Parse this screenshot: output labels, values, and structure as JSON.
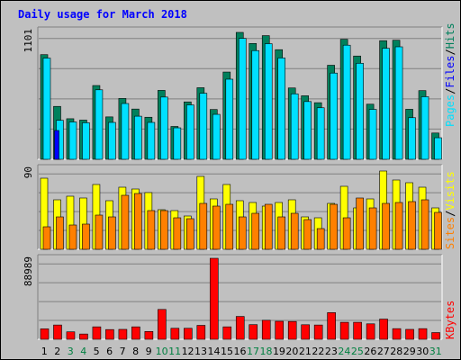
{
  "chart_data": [
    {
      "type": "bar",
      "panel": "pages-files-hits",
      "title": "Daily usage for March 2018",
      "categories": [
        "1",
        "2",
        "3",
        "4",
        "5",
        "6",
        "7",
        "8",
        "9",
        "10",
        "11",
        "12",
        "13",
        "14",
        "15",
        "16",
        "17",
        "18",
        "19",
        "20",
        "21",
        "22",
        "23",
        "24",
        "25",
        "26",
        "27",
        "28",
        "29",
        "30",
        "31"
      ],
      "weekend_days": [
        3,
        4,
        10,
        11,
        17,
        18,
        24,
        25,
        31
      ],
      "ymax_label": "1101",
      "ylim": [
        0,
        1101
      ],
      "legend": [
        "Pages",
        "/",
        "Files",
        "/",
        "Hits"
      ],
      "series": [
        {
          "name": "Hits",
          "color": "#00805c",
          "values": [
            908,
            459,
            352,
            340,
            640,
            368,
            528,
            436,
            365,
            598,
            285,
            498,
            621,
            432,
            757,
            1101,
            1005,
            1073,
            951,
            619,
            551,
            491,
            816,
            1041,
            896,
            478,
            1029,
            1033,
            434,
            596,
            228
          ]
        },
        {
          "name": "Files",
          "color": "#00e0ff",
          "values": [
            878,
            338,
            324,
            317,
            603,
            320,
            484,
            374,
            320,
            540,
            273,
            472,
            573,
            390,
            695,
            1049,
            943,
            1003,
            879,
            568,
            501,
            447,
            748,
            990,
            833,
            433,
            963,
            976,
            361,
            543,
            187
          ]
        },
        {
          "name": "Pages",
          "color": "#0000ff",
          "values": [
            0,
            250,
            0,
            0,
            0,
            0,
            0,
            0,
            0,
            0,
            0,
            0,
            0,
            0,
            0,
            0,
            0,
            0,
            0,
            0,
            0,
            0,
            0,
            0,
            0,
            0,
            0,
            0,
            0,
            0,
            0
          ]
        }
      ]
    },
    {
      "type": "bar",
      "panel": "visits-sites",
      "categories": [
        "1",
        "2",
        "3",
        "4",
        "5",
        "6",
        "7",
        "8",
        "9",
        "10",
        "11",
        "12",
        "13",
        "14",
        "15",
        "16",
        "17",
        "18",
        "19",
        "20",
        "21",
        "22",
        "23",
        "24",
        "25",
        "26",
        "27",
        "28",
        "29",
        "30",
        "31"
      ],
      "ymax_label": "90",
      "ylim": [
        0,
        90
      ],
      "legend": [
        "Sites",
        "/",
        "Visits"
      ],
      "series": [
        {
          "name": "Visits",
          "color": "#ffff00",
          "values": [
            79,
            55,
            59,
            57,
            72,
            54,
            69,
            67,
            63,
            44,
            43,
            37,
            81,
            56,
            72,
            54,
            52,
            48,
            52,
            55,
            36,
            35,
            51,
            70,
            46,
            56,
            87,
            77,
            74,
            69,
            46
          ]
        },
        {
          "name": "Sites",
          "color": "#ff8000",
          "values": [
            25,
            36,
            27,
            28,
            38,
            36,
            60,
            62,
            43,
            43,
            35,
            34,
            51,
            48,
            50,
            36,
            40,
            50,
            36,
            40,
            33,
            23,
            50,
            35,
            57,
            46,
            51,
            52,
            53,
            55,
            41
          ]
        }
      ]
    },
    {
      "type": "bar",
      "panel": "kbytes",
      "categories": [
        "1",
        "2",
        "3",
        "4",
        "5",
        "6",
        "7",
        "8",
        "9",
        "10",
        "11",
        "12",
        "13",
        "14",
        "15",
        "16",
        "17",
        "18",
        "19",
        "20",
        "21",
        "22",
        "23",
        "24",
        "25",
        "26",
        "27",
        "28",
        "29",
        "30",
        "31"
      ],
      "ymax_label": "88989",
      "ylim": [
        0,
        88989
      ],
      "legend": [
        "KBytes"
      ],
      "series": [
        {
          "name": "KBytes",
          "color": "#ff0000",
          "values": [
            11500,
            15700,
            8200,
            5800,
            13700,
            10700,
            10900,
            13700,
            8600,
            32800,
            12100,
            12100,
            15300,
            88989,
            13700,
            25100,
            16100,
            20900,
            19800,
            19600,
            16000,
            15700,
            29300,
            18700,
            18700,
            17000,
            22200,
            11700,
            10900,
            11700,
            7400
          ]
        }
      ]
    }
  ]
}
